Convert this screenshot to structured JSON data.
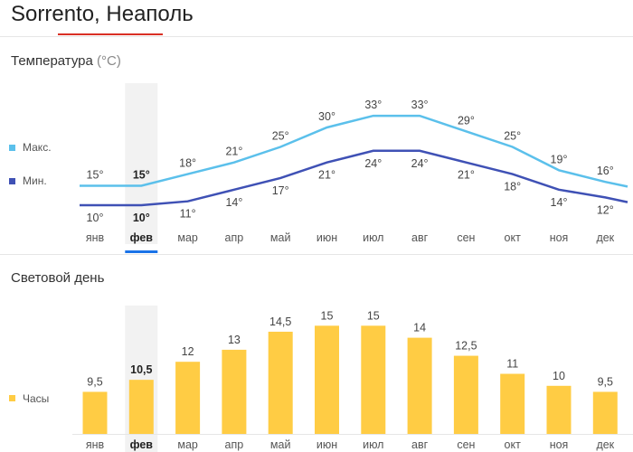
{
  "header": {
    "title": "Sorrento, Неаполь"
  },
  "temperature": {
    "section_title": "Температура",
    "unit": "(°C)",
    "legend_max": "Макс.",
    "legend_min": "Мин.",
    "max_color": "#5bc0eb",
    "min_color": "#3f51b5"
  },
  "daylight": {
    "section_title": "Световой день",
    "legend": "Часы",
    "bar_color": "#ffcc44"
  },
  "selected_month_index": 1,
  "chart_data": [
    {
      "type": "line",
      "categories": [
        "янв",
        "фев",
        "мар",
        "апр",
        "май",
        "июн",
        "июл",
        "авг",
        "сен",
        "окт",
        "ноя",
        "дек"
      ],
      "series": [
        {
          "name": "Макс.",
          "values": [
            15,
            15,
            18,
            21,
            25,
            30,
            33,
            33,
            29,
            25,
            19,
            16
          ],
          "labels": [
            "15°",
            "15°",
            "18°",
            "21°",
            "25°",
            "30°",
            "33°",
            "33°",
            "29°",
            "25°",
            "19°",
            "16°"
          ]
        },
        {
          "name": "Мин.",
          "values": [
            10,
            10,
            11,
            14,
            17,
            21,
            24,
            24,
            21,
            18,
            14,
            12
          ],
          "labels": [
            "10°",
            "10°",
            "11°",
            "14°",
            "17°",
            "21°",
            "24°",
            "24°",
            "21°",
            "18°",
            "14°",
            "12°"
          ]
        }
      ],
      "title": "Температура (°C)",
      "legend": "left",
      "grid": false
    },
    {
      "type": "bar",
      "categories": [
        "янв",
        "фев",
        "мар",
        "апр",
        "май",
        "июн",
        "июл",
        "авг",
        "сен",
        "окт",
        "ноя",
        "дек"
      ],
      "values": [
        9.5,
        10.5,
        12,
        13,
        14.5,
        15,
        15,
        14,
        12.5,
        11,
        10,
        9.5
      ],
      "value_labels": [
        "9,5",
        "10,5",
        "12",
        "13",
        "14,5",
        "15",
        "15",
        "14",
        "12,5",
        "11",
        "10",
        "9,5"
      ],
      "title": "Световой день",
      "legend": "left",
      "grid": false
    }
  ]
}
